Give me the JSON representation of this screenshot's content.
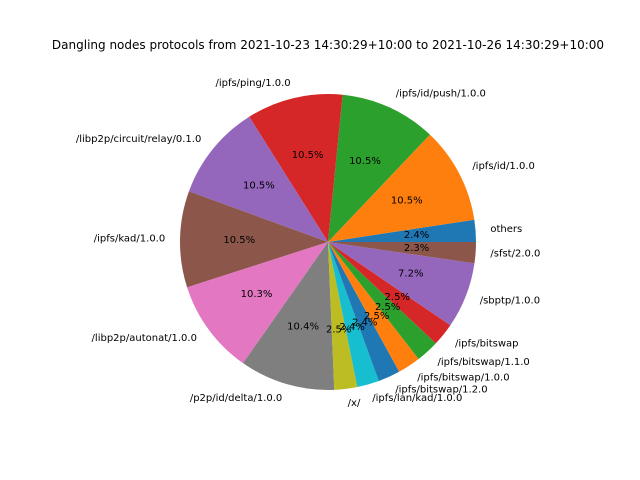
{
  "chart_data": {
    "type": "pie",
    "title": "Dangling nodes protocols from 2021-10-23 14:30:29+10:00 to 2021-10-26 14:30:29+10:00",
    "start_angle_deg": 0,
    "direction": "counterclockwise",
    "slices": [
      {
        "label": "others",
        "value": 2.4,
        "pct_label": "2.4%",
        "color": "#1f77b4"
      },
      {
        "label": "/ipfs/id/1.0.0",
        "value": 10.5,
        "pct_label": "10.5%",
        "color": "#ff7f0e"
      },
      {
        "label": "/ipfs/id/push/1.0.0",
        "value": 10.5,
        "pct_label": "10.5%",
        "color": "#2ca02c"
      },
      {
        "label": "/ipfs/ping/1.0.0",
        "value": 10.5,
        "pct_label": "10.5%",
        "color": "#d62728"
      },
      {
        "label": "/libp2p/circuit/relay/0.1.0",
        "value": 10.5,
        "pct_label": "10.5%",
        "color": "#9467bd"
      },
      {
        "label": "/ipfs/kad/1.0.0",
        "value": 10.5,
        "pct_label": "10.5%",
        "color": "#8c564b"
      },
      {
        "label": "/libp2p/autonat/1.0.0",
        "value": 10.3,
        "pct_label": "10.3%",
        "color": "#e377c2"
      },
      {
        "label": "/p2p/id/delta/1.0.0",
        "value": 10.4,
        "pct_label": "10.4%",
        "color": "#7f7f7f"
      },
      {
        "label": "/x/",
        "value": 2.5,
        "pct_label": "2.5%",
        "color": "#bcbd22"
      },
      {
        "label": "/ipfs/lan/kad/1.0.0",
        "value": 2.4,
        "pct_label": "2.4%",
        "color": "#17becf"
      },
      {
        "label": "/ipfs/bitswap/1.2.0",
        "value": 2.4,
        "pct_label": "2.4%",
        "color": "#1f77b4"
      },
      {
        "label": "/ipfs/bitswap/1.0.0",
        "value": 2.5,
        "pct_label": "2.5%",
        "color": "#ff7f0e"
      },
      {
        "label": "/ipfs/bitswap/1.1.0",
        "value": 2.5,
        "pct_label": "2.5%",
        "color": "#2ca02c"
      },
      {
        "label": "/ipfs/bitswap",
        "value": 2.5,
        "pct_label": "2.5%",
        "color": "#d62728"
      },
      {
        "label": "/sbptp/1.0.0",
        "value": 7.2,
        "pct_label": "7.2%",
        "color": "#9467bd"
      },
      {
        "label": "/sfst/2.0.0",
        "value": 2.3,
        "pct_label": "2.3%",
        "color": "#8c564b"
      }
    ]
  }
}
